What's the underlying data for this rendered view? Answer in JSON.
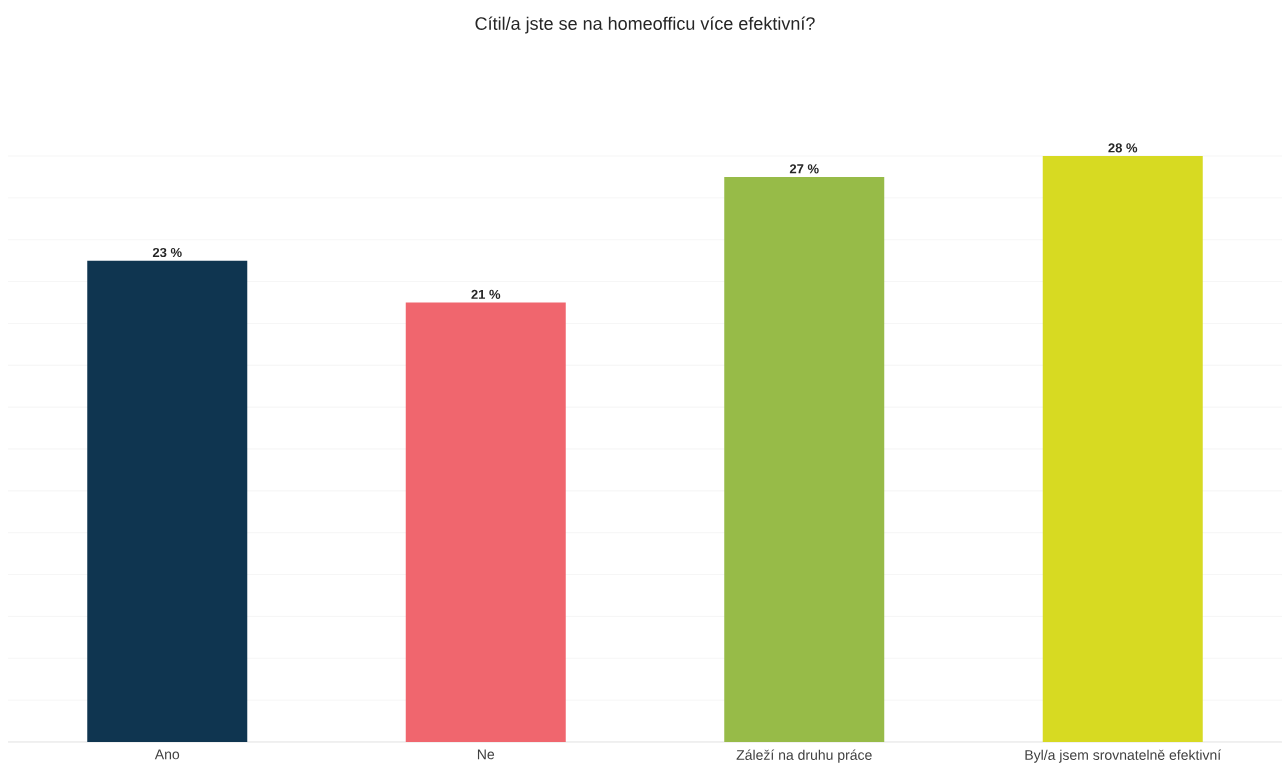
{
  "chart_data": {
    "type": "bar",
    "title": "Cítil/a jste se na homeofficu více efektivní?",
    "categories": [
      "Ano",
      "Ne",
      "Záleží na druhu práce",
      "Byl/a jsem srovnatelně efektivní"
    ],
    "values": [
      23,
      21,
      27,
      28
    ],
    "colors": [
      "#0f3550",
      "#f0666e",
      "#97bb48",
      "#d7da22"
    ],
    "value_labels": [
      "23 %",
      "21 %",
      "27 %",
      "28 %"
    ],
    "grid": "y",
    "tick_labels": "x"
  }
}
